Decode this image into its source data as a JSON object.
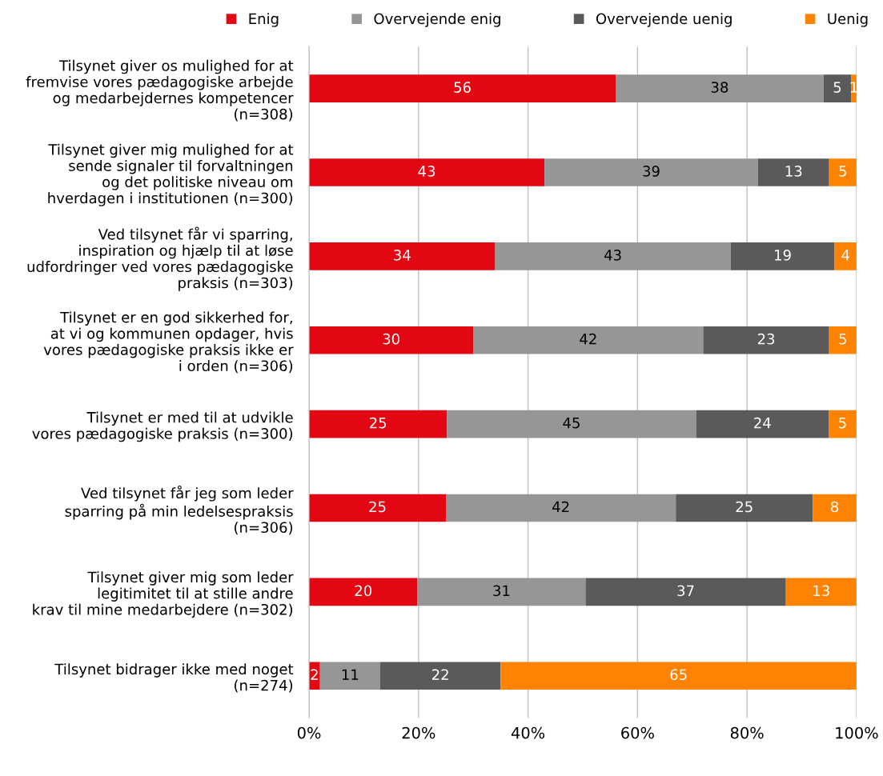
{
  "chart_data": {
    "type": "bar",
    "orientation": "horizontal",
    "stacked": true,
    "categories": [
      "Tilsynet giver os mulighed for at fremvise vores pædagogiske arbejde og medarbejdernes kompetencer (n=308)",
      "Tilsynet giver mig mulighed for at sende signaler til forvaltningen og det politiske niveau om hverdagen i institutionen (n=300)",
      "Ved tilsynet får vi sparring, inspiration og hjælp til at løse udfordringer ved vores pædagogiske praksis (n=303)",
      "Tilsynet er en god sikkerhed for, at vi og kommunen opdager, hvis vores pædagogiske praksis ikke er i orden (n=306)",
      "Tilsynet er med til at udvikle vores pædagogiske praksis (n=300)",
      "Ved tilsynet får jeg som leder sparring på min ledelsespraksis (n=306)",
      "Tilsynet giver mig som leder legitimitet til at stille andre krav til mine medarbejdere (n=302)",
      "Tilsynet bidrager ikke med noget (n=274)"
    ],
    "series": [
      {
        "name": "Enig",
        "color": "#e30613",
        "values": [
          56,
          43,
          34,
          30,
          25.2,
          25,
          19.8,
          2
        ],
        "value_labels": [
          "56",
          "43",
          "34",
          "30",
          "25",
          "25",
          "20",
          "2"
        ]
      },
      {
        "name": "Overvejende enig",
        "color": "#969696",
        "values": [
          38,
          39,
          43,
          42,
          45.5,
          42,
          30.7,
          11
        ],
        "value_labels": [
          "38",
          "39",
          "43",
          "42",
          "45",
          "42",
          "31",
          "11"
        ]
      },
      {
        "name": "Overvejende uenig",
        "color": "#5a5a5a",
        "values": [
          5,
          13,
          19,
          23,
          24.2,
          25,
          36.6,
          22
        ],
        "value_labels": [
          "5",
          "13",
          "19",
          "23",
          "24",
          "25",
          "37",
          "22"
        ]
      },
      {
        "name": "Uenig",
        "color": "#ff8200",
        "values": [
          1,
          5,
          4,
          5,
          5.1,
          8,
          12.9,
          65
        ],
        "value_labels": [
          "1",
          "5",
          "4",
          "5",
          "5",
          "8",
          "13",
          "65"
        ]
      }
    ],
    "xlim": [
      0,
      100
    ],
    "xticks": [
      {
        "value": 0,
        "label": "0%"
      },
      {
        "value": 20,
        "label": "20%"
      },
      {
        "value": 40,
        "label": "40%"
      },
      {
        "value": 60,
        "label": "60%"
      },
      {
        "value": 80,
        "label": "80%"
      },
      {
        "value": 100,
        "label": "100%"
      }
    ],
    "grid": "x",
    "legend": "top"
  }
}
